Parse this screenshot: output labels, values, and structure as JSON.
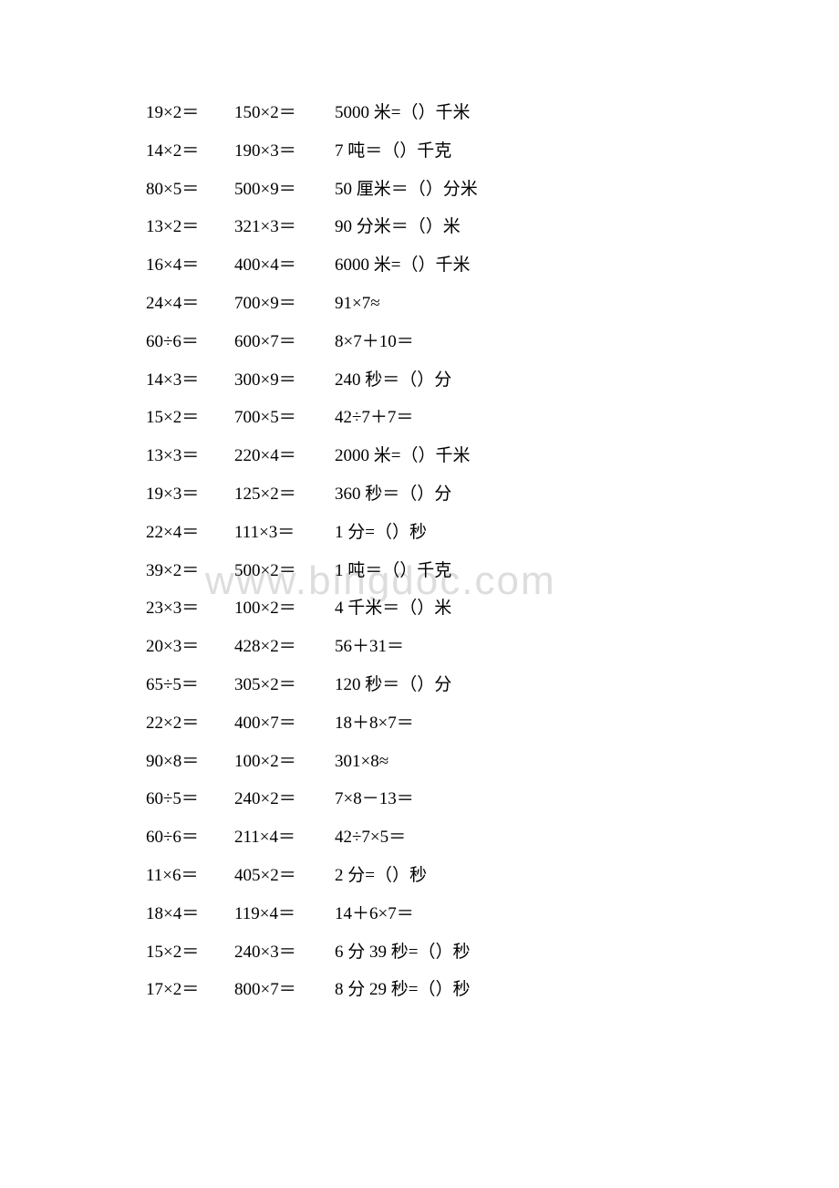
{
  "watermark": "www.bingdoc.com",
  "rows": [
    {
      "c1": "19×2＝",
      "c2": "150×2＝",
      "c3": "5000 米=（）千米"
    },
    {
      "c1": "14×2＝",
      "c2": "190×3＝",
      "c3": "7 吨＝（）千克"
    },
    {
      "c1": "80×5＝",
      "c2": "500×9＝",
      "c3": "50 厘米＝（）分米"
    },
    {
      "c1": "13×2＝",
      "c2": "321×3＝",
      "c3": "90 分米＝（）米"
    },
    {
      "c1": "16×4＝",
      "c2": "400×4＝",
      "c3": "6000 米=（）千米"
    },
    {
      "c1": "24×4＝",
      "c2": "700×9＝",
      "c3": "91×7≈"
    },
    {
      "c1": "60÷6＝",
      "c2": "600×7＝",
      "c3": "8×7＋10＝"
    },
    {
      "c1": "14×3＝",
      "c2": "300×9＝",
      "c3": "240 秒＝（）分"
    },
    {
      "c1": "15×2＝",
      "c2": "700×5＝",
      "c3": "42÷7＋7＝"
    },
    {
      "c1": "13×3＝",
      "c2": "220×4＝",
      "c3": "2000 米=（）千米"
    },
    {
      "c1": "19×3＝",
      "c2": "125×2＝",
      "c3": "360 秒＝（）分"
    },
    {
      "c1": "22×4＝",
      "c2": "111×3＝",
      "c3": "1 分=（）秒"
    },
    {
      "c1": "39×2＝",
      "c2": "500×2＝",
      "c3": "1 吨＝（）千克"
    },
    {
      "c1": "23×3＝",
      "c2": "100×2＝",
      "c3": "4 千米＝（）米"
    },
    {
      "c1": "20×3＝",
      "c2": "428×2＝",
      "c3": "56＋31＝"
    },
    {
      "c1": "65÷5＝",
      "c2": "305×2＝",
      "c3": "120 秒＝（）分"
    },
    {
      "c1": "22×2＝",
      "c2": "400×7＝",
      "c3": "18＋8×7＝"
    },
    {
      "c1": "90×8＝",
      "c2": "100×2＝",
      "c3": "301×8≈"
    },
    {
      "c1": "60÷5＝",
      "c2": "240×2＝",
      "c3": "7×8－13＝"
    },
    {
      "c1": "60÷6＝",
      "c2": "211×4＝",
      "c3": "42÷7×5＝"
    },
    {
      "c1": "11×6＝",
      "c2": "405×2＝",
      "c3": "2 分=（）秒"
    },
    {
      "c1": "18×4＝",
      "c2": "119×4＝",
      "c3": "14＋6×7＝"
    },
    {
      "c1": "15×2＝",
      "c2": "240×3＝",
      "c3": "6 分 39 秒=（）秒"
    },
    {
      "c1": "17×2＝",
      "c2": "800×7＝",
      "c3": "8 分 29 秒=（）秒"
    }
  ]
}
